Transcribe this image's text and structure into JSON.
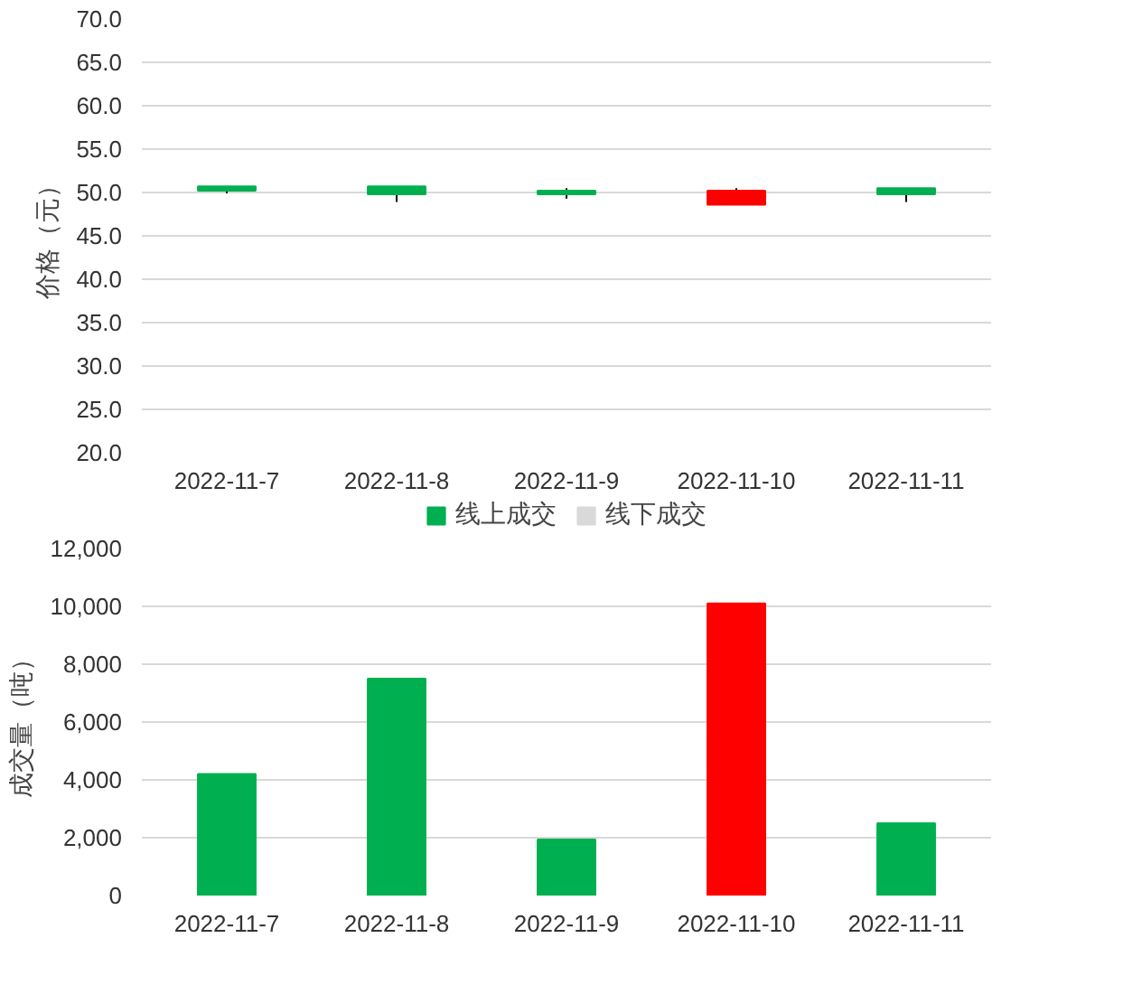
{
  "chart_data": [
    {
      "type": "candlestick",
      "ylabel": "价格（元）",
      "categories": [
        "2022-11-7",
        "2022-11-8",
        "2022-11-9",
        "2022-11-10",
        "2022-11-11"
      ],
      "ohlc": [
        [
          50.7,
          50.7,
          49.9,
          50.2
        ],
        [
          50.7,
          50.7,
          48.9,
          49.8
        ],
        [
          50.2,
          50.5,
          49.3,
          49.8
        ],
        [
          48.6,
          50.5,
          48.6,
          50.2
        ],
        [
          50.5,
          50.5,
          48.9,
          49.8
        ]
      ],
      "colors": [
        "#00b050",
        "#00b050",
        "#00b050",
        "#ff0000",
        "#00b050"
      ],
      "ylim": [
        20,
        70
      ],
      "yticks": [
        {
          "value": 20,
          "label": "20.0"
        },
        {
          "value": 25,
          "label": "25.0"
        },
        {
          "value": 30,
          "label": "30.0"
        },
        {
          "value": 35,
          "label": "35.0"
        },
        {
          "value": 40,
          "label": "40.0"
        },
        {
          "value": 45,
          "label": "45.0"
        },
        {
          "value": 50,
          "label": "50.0"
        },
        {
          "value": 55,
          "label": "55.0"
        },
        {
          "value": 60,
          "label": "60.0"
        },
        {
          "value": 65,
          "label": "65.0"
        },
        {
          "value": 70,
          "label": "70.0"
        }
      ],
      "grid": "y"
    },
    {
      "type": "bar",
      "ylabel": "成交量（吨）",
      "categories": [
        "2022-11-7",
        "2022-11-8",
        "2022-11-9",
        "2022-11-10",
        "2022-11-11"
      ],
      "series": [
        {
          "name": "线上成交",
          "color": "#00b050",
          "colors": [
            "#00b050",
            "#00b050",
            "#00b050",
            "#ff0000",
            "#00b050"
          ],
          "values": [
            4200,
            7500,
            1940,
            10100,
            2500
          ]
        },
        {
          "name": "线下成交",
          "color": "#d9d9d9",
          "values": [
            null,
            null,
            null,
            null,
            null
          ]
        }
      ],
      "stacked": true,
      "ylim": [
        0,
        12000
      ],
      "yticks": [
        0,
        {
          "value": 2000,
          "label": "2,000"
        },
        {
          "value": 4000,
          "label": "4,000"
        },
        {
          "value": 6000,
          "label": "6,000"
        },
        {
          "value": 8000,
          "label": "8,000"
        },
        {
          "value": 10000,
          "label": "10,000"
        },
        {
          "value": 12000,
          "label": "12,000"
        }
      ],
      "grid": "y",
      "legend": "top"
    }
  ]
}
